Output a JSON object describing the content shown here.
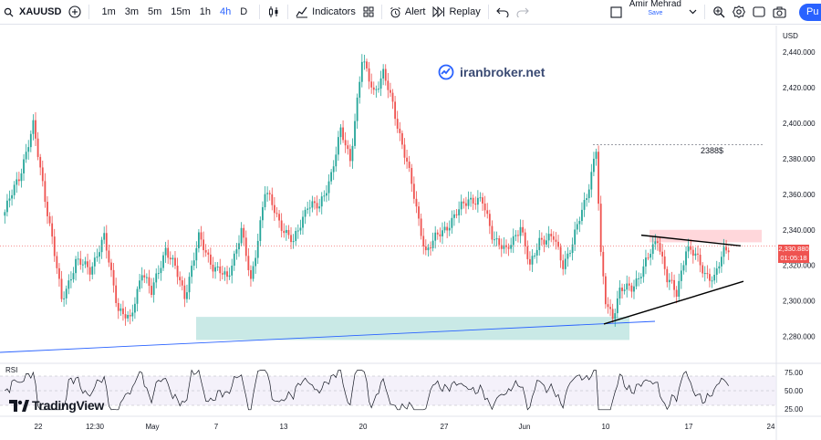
{
  "toolbar": {
    "symbol": "XAUUSD",
    "timeframes": [
      "1m",
      "3m",
      "5m",
      "15m",
      "1h",
      "4h",
      "D"
    ],
    "active_timeframe": "4h",
    "indicators_label": "Indicators",
    "alert_label": "Alert",
    "replay_label": "Replay",
    "user_name": "Amir Mehrad",
    "user_status": "Save",
    "publish_label": "Pu"
  },
  "watermark": {
    "text": "iranbroker.net"
  },
  "brand": {
    "text": "TradingView"
  },
  "price_axis": {
    "currency": "USD",
    "ticks": [
      "2,440.000",
      "2,420.000",
      "2,400.000",
      "2,380.000",
      "2,360.000",
      "2,340.000",
      "2,320.000",
      "2,300.000",
      "2,280.000"
    ],
    "current_price": "2,330.880",
    "countdown": "01:05:18"
  },
  "time_axis": {
    "labels": [
      "22",
      "12:30",
      "May",
      "7",
      "13",
      "20",
      "27",
      "Jun",
      "10",
      "17",
      "24"
    ]
  },
  "annotation": {
    "level_label": "2388$"
  },
  "rsi": {
    "label": "RSI",
    "ticks": [
      "75.00",
      "50.00",
      "25.00"
    ]
  },
  "colors": {
    "up": "#26a69a",
    "down": "#ef5350",
    "accent": "#2962ff",
    "support_zone": "#b2dfdb",
    "resistance_zone": "#ffcdd2"
  },
  "chart_data": {
    "type": "candlestick",
    "symbol": "XAUUSD",
    "timeframe": "4h",
    "ylim": [
      2270,
      2455
    ],
    "y_ticks": [
      2280,
      2300,
      2320,
      2340,
      2360,
      2380,
      2400,
      2420,
      2440
    ],
    "anchors": [
      [
        0,
        2350
      ],
      [
        6,
        2370
      ],
      [
        12,
        2398
      ],
      [
        20,
        2335
      ],
      [
        24,
        2300
      ],
      [
        30,
        2322
      ],
      [
        36,
        2318
      ],
      [
        42,
        2335
      ],
      [
        48,
        2296
      ],
      [
        53,
        2288
      ],
      [
        58,
        2318
      ],
      [
        62,
        2304
      ],
      [
        68,
        2330
      ],
      [
        72,
        2318
      ],
      [
        76,
        2303
      ],
      [
        82,
        2335
      ],
      [
        88,
        2320
      ],
      [
        94,
        2312
      ],
      [
        100,
        2340
      ],
      [
        104,
        2310
      ],
      [
        110,
        2362
      ],
      [
        116,
        2345
      ],
      [
        122,
        2332
      ],
      [
        128,
        2355
      ],
      [
        133,
        2352
      ],
      [
        138,
        2372
      ],
      [
        142,
        2395
      ],
      [
        146,
        2380
      ],
      [
        151,
        2435
      ],
      [
        156,
        2418
      ],
      [
        160,
        2428
      ],
      [
        164,
        2410
      ],
      [
        170,
        2378
      ],
      [
        175,
        2345
      ],
      [
        178,
        2328
      ],
      [
        184,
        2338
      ],
      [
        190,
        2347
      ],
      [
        196,
        2358
      ],
      [
        202,
        2355
      ],
      [
        206,
        2338
      ],
      [
        212,
        2327
      ],
      [
        218,
        2343
      ],
      [
        222,
        2318
      ],
      [
        226,
        2335
      ],
      [
        232,
        2335
      ],
      [
        236,
        2321
      ],
      [
        240,
        2332
      ],
      [
        246,
        2360
      ],
      [
        250,
        2385
      ],
      [
        252,
        2324
      ],
      [
        254,
        2300
      ],
      [
        257,
        2292
      ],
      [
        260,
        2305
      ],
      [
        265,
        2308
      ],
      [
        270,
        2318
      ],
      [
        276,
        2336
      ],
      [
        280,
        2312
      ],
      [
        284,
        2304
      ],
      [
        288,
        2330
      ],
      [
        292,
        2325
      ],
      [
        296,
        2316
      ],
      [
        300,
        2312
      ],
      [
        304,
        2328
      ],
      [
        306,
        2331
      ]
    ],
    "support_zone": {
      "low": 2278,
      "high": 2291
    },
    "resistance_zone": {
      "low": 2333,
      "high": 2340
    },
    "level_line": 2388,
    "triangle": {
      "upper": [
        [
          2337,
          2331
        ]
      ],
      "lower": [
        [
          2287,
          2311
        ]
      ]
    },
    "rsi": {
      "ylim": [
        20,
        80
      ],
      "ticks": [
        25,
        50,
        75
      ]
    }
  }
}
